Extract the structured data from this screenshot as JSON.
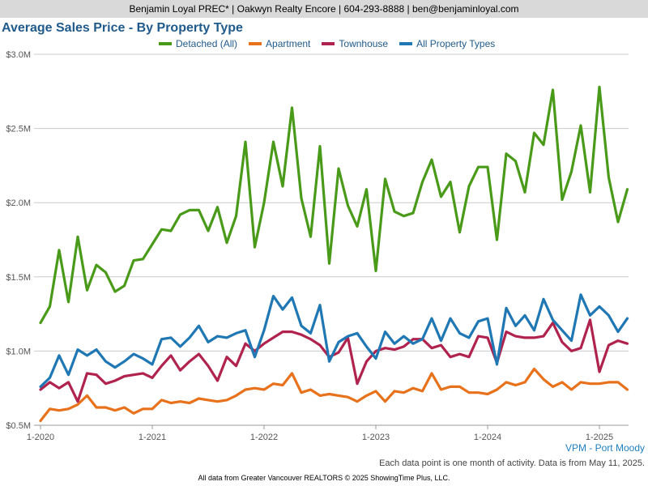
{
  "header": {
    "banner": "Benjamin Loyal PREC* | Oakwyn Realty Encore | 604-293-8888 | ben@benjaminloyal.com"
  },
  "footer": {
    "region": "VPM - Port Moody",
    "note": "Each data point is one month of activity. Data is from May 11, 2025.",
    "source": "All data from Greater Vancouver REALTORS © 2025 ShowingTime Plus, LLC."
  },
  "chart_data": {
    "type": "line",
    "title": "Average Sales Price - By Property Type",
    "xlabel": "",
    "ylabel": "",
    "grid": true,
    "legend_position": "top",
    "ylim": [
      0.5,
      3.0
    ],
    "yticks": [
      0.5,
      1.0,
      1.5,
      2.0,
      2.5,
      3.0
    ],
    "ytick_labels": [
      "$0.5M",
      "$1.0M",
      "$1.5M",
      "$2.0M",
      "$2.5M",
      "$3.0M"
    ],
    "y_unit": "$M",
    "xticks": [
      "1-2020",
      "1-2021",
      "1-2022",
      "1-2023",
      "1-2024",
      "1-2025"
    ],
    "x_start": "2020-01",
    "x": [
      "2020-01",
      "2020-02",
      "2020-03",
      "2020-04",
      "2020-05",
      "2020-06",
      "2020-07",
      "2020-08",
      "2020-09",
      "2020-10",
      "2020-11",
      "2020-12",
      "2021-01",
      "2021-02",
      "2021-03",
      "2021-04",
      "2021-05",
      "2021-06",
      "2021-07",
      "2021-08",
      "2021-09",
      "2021-10",
      "2021-11",
      "2021-12",
      "2022-01",
      "2022-02",
      "2022-03",
      "2022-04",
      "2022-05",
      "2022-06",
      "2022-07",
      "2022-08",
      "2022-09",
      "2022-10",
      "2022-11",
      "2022-12",
      "2023-01",
      "2023-02",
      "2023-03",
      "2023-04",
      "2023-05",
      "2023-06",
      "2023-07",
      "2023-08",
      "2023-09",
      "2023-10",
      "2023-11",
      "2023-12",
      "2024-01",
      "2024-02",
      "2024-03",
      "2024-04",
      "2024-05",
      "2024-06",
      "2024-07",
      "2024-08",
      "2024-09",
      "2024-10",
      "2024-11",
      "2024-12",
      "2025-01",
      "2025-02",
      "2025-03",
      "2025-04"
    ],
    "series": [
      {
        "name": "Detached (All)",
        "color": "#4a9a1a",
        "values": [
          1.19,
          1.3,
          1.68,
          1.33,
          1.77,
          1.41,
          1.58,
          1.53,
          1.4,
          1.44,
          1.61,
          1.62,
          1.72,
          1.82,
          1.81,
          1.92,
          1.95,
          1.95,
          1.81,
          1.97,
          1.73,
          1.91,
          2.41,
          1.7,
          2.0,
          2.41,
          2.11,
          2.64,
          2.03,
          1.77,
          2.38,
          1.59,
          2.23,
          1.98,
          1.84,
          2.09,
          1.54,
          2.16,
          1.94,
          1.91,
          1.93,
          2.14,
          2.29,
          2.04,
          2.14,
          1.8,
          2.11,
          2.24,
          2.24,
          1.75,
          2.33,
          2.28,
          2.07,
          2.47,
          2.39,
          2.76,
          2.02,
          2.21,
          2.52,
          2.07,
          2.78,
          2.17,
          1.87,
          2.09
        ]
      },
      {
        "name": "Apartment",
        "color": "#e8721c",
        "values": [
          0.53,
          0.61,
          0.6,
          0.61,
          0.64,
          0.7,
          0.62,
          0.62,
          0.6,
          0.62,
          0.58,
          0.61,
          0.61,
          0.67,
          0.65,
          0.66,
          0.65,
          0.68,
          0.67,
          0.66,
          0.67,
          0.7,
          0.74,
          0.75,
          0.74,
          0.78,
          0.77,
          0.85,
          0.72,
          0.74,
          0.7,
          0.71,
          0.7,
          0.69,
          0.66,
          0.7,
          0.73,
          0.66,
          0.73,
          0.72,
          0.75,
          0.73,
          0.85,
          0.74,
          0.76,
          0.76,
          0.72,
          0.72,
          0.71,
          0.74,
          0.79,
          0.77,
          0.79,
          0.88,
          0.81,
          0.76,
          0.79,
          0.74,
          0.79,
          0.78,
          0.78,
          0.79,
          0.79,
          0.74
        ]
      },
      {
        "name": "Townhouse",
        "color": "#b0234e",
        "values": [
          0.74,
          0.79,
          0.75,
          0.79,
          0.66,
          0.85,
          0.84,
          0.78,
          0.8,
          0.83,
          0.84,
          0.85,
          0.82,
          0.9,
          0.97,
          0.87,
          0.93,
          0.98,
          0.9,
          0.8,
          0.96,
          0.9,
          1.05,
          1.0,
          1.05,
          1.09,
          1.13,
          1.13,
          1.11,
          1.08,
          1.04,
          0.96,
          0.99,
          1.09,
          0.78,
          0.93,
          1.0,
          1.02,
          1.01,
          1.03,
          1.08,
          1.08,
          1.02,
          1.04,
          0.96,
          0.98,
          0.96,
          1.1,
          1.09,
          0.92,
          1.13,
          1.1,
          1.09,
          1.09,
          1.1,
          1.19,
          1.06,
          1.0,
          1.02,
          1.21,
          0.86,
          1.04,
          1.07,
          1.05
        ]
      },
      {
        "name": "All Property Types",
        "color": "#1f77b4",
        "values": [
          0.76,
          0.82,
          0.97,
          0.84,
          1.01,
          0.97,
          1.01,
          0.93,
          0.89,
          0.93,
          0.98,
          0.95,
          0.91,
          1.08,
          1.09,
          1.03,
          1.09,
          1.17,
          1.06,
          1.1,
          1.09,
          1.12,
          1.14,
          0.96,
          1.14,
          1.37,
          1.28,
          1.36,
          1.17,
          1.12,
          1.31,
          0.93,
          1.06,
          1.1,
          1.12,
          1.03,
          0.95,
          1.13,
          1.05,
          1.1,
          1.05,
          1.08,
          1.22,
          1.07,
          1.22,
          1.12,
          1.09,
          1.2,
          1.22,
          0.91,
          1.29,
          1.17,
          1.24,
          1.14,
          1.35,
          1.21,
          1.14,
          1.07,
          1.38,
          1.24,
          1.3,
          1.24,
          1.13,
          1.22
        ]
      }
    ]
  }
}
